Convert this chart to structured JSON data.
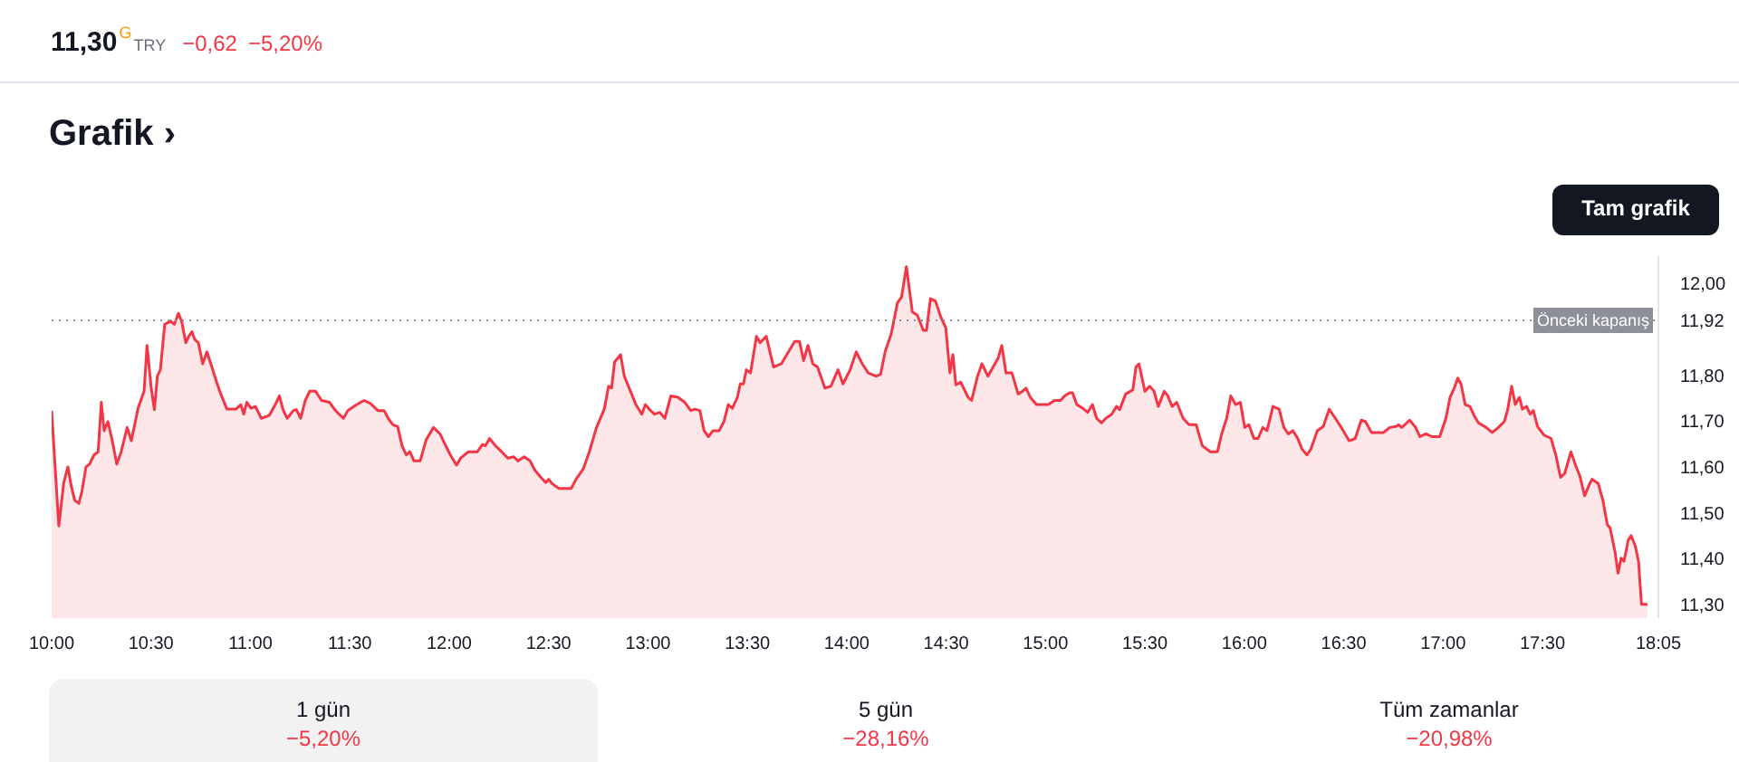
{
  "chart_data": {
    "type": "area",
    "title": "Grafik ›",
    "annotations": [
      "11,30",
      "G",
      "TRY",
      "−0,62",
      "−5,20%",
      "Tam grafik",
      "1 gün",
      "−5,20%",
      "5 gün",
      "−28,16%",
      "Tüm zamanlar",
      "−20,98%"
    ],
    "color": "#f23645",
    "x": [
      10.0,
      10.036,
      10.061,
      10.082,
      10.098,
      10.116,
      10.137,
      10.152,
      10.173,
      10.191,
      10.213,
      10.234,
      10.25,
      10.264,
      10.283,
      10.304,
      10.328,
      10.35,
      10.38,
      10.401,
      10.435,
      10.465,
      10.48,
      10.501,
      10.517,
      10.532,
      10.547,
      10.569,
      10.599,
      10.617,
      10.638,
      10.654,
      10.675,
      10.69,
      10.706,
      10.72,
      10.738,
      10.76,
      10.781,
      10.806,
      10.83,
      10.851,
      10.882,
      10.927,
      10.952,
      10.966,
      10.982,
      11.003,
      11.025,
      11.055,
      11.094,
      11.125,
      11.146,
      11.164,
      11.185,
      11.216,
      11.231,
      11.253,
      11.276,
      11.298,
      11.328,
      11.358,
      11.398,
      11.428,
      11.468,
      11.49,
      11.535,
      11.572,
      11.602,
      11.641,
      11.672,
      11.693,
      11.717,
      11.741,
      11.763,
      11.784,
      11.802,
      11.823,
      11.854,
      11.884,
      11.921,
      11.954,
      11.975,
      12.006,
      12.037,
      12.057,
      12.097,
      12.142,
      12.167,
      12.182,
      12.203,
      12.233,
      12.264,
      12.295,
      12.325,
      12.346,
      12.377,
      12.407,
      12.431,
      12.461,
      12.486,
      12.501,
      12.516,
      12.552,
      12.614,
      12.638,
      12.675,
      12.705,
      12.741,
      12.78,
      12.802,
      12.817,
      12.832,
      12.862,
      12.881,
      12.912,
      12.939,
      12.969,
      12.987,
      13.008,
      13.033,
      13.06,
      13.085,
      13.115,
      13.151,
      13.185,
      13.215,
      13.236,
      13.261,
      13.282,
      13.304,
      13.327,
      13.358,
      13.382,
      13.404,
      13.425,
      13.45,
      13.464,
      13.48,
      13.495,
      13.516,
      13.546,
      13.564,
      13.595,
      13.632,
      13.671,
      13.707,
      13.738,
      13.762,
      13.783,
      13.805,
      13.829,
      13.853,
      13.89,
      13.92,
      13.956,
      13.981,
      14.017,
      14.048,
      14.078,
      14.108,
      14.148,
      14.17,
      14.193,
      14.224,
      14.255,
      14.276,
      14.3,
      14.33,
      14.355,
      14.385,
      14.401,
      14.421,
      14.446,
      14.476,
      14.498,
      14.519,
      14.534,
      14.549,
      14.573,
      14.61,
      14.628,
      14.658,
      14.68,
      14.71,
      14.74,
      14.762,
      14.78,
      14.801,
      14.831,
      14.862,
      14.884,
      14.902,
      14.923,
      14.954,
      15.014,
      15.045,
      15.075,
      15.096,
      15.121,
      15.136,
      15.157,
      15.187,
      15.212,
      15.236,
      15.257,
      15.282,
      15.303,
      15.333,
      15.357,
      15.373,
      15.403,
      15.439,
      15.455,
      15.47,
      15.5,
      15.524,
      15.546,
      15.567,
      15.597,
      15.615,
      15.637,
      15.66,
      15.692,
      15.722,
      15.758,
      15.789,
      15.829,
      15.865,
      15.886,
      15.911,
      15.932,
      15.956,
      15.98,
      16.002,
      16.023,
      16.048,
      16.069,
      16.093,
      16.114,
      16.144,
      16.175,
      16.199,
      16.221,
      16.244,
      16.269,
      16.29,
      16.315,
      16.335,
      16.367,
      16.397,
      16.427,
      16.458,
      16.488,
      16.527,
      16.558,
      16.588,
      16.609,
      16.64,
      16.7,
      16.731,
      16.761,
      16.777,
      16.792,
      16.832,
      16.862,
      16.883,
      16.914,
      16.944,
      16.983,
      17.014,
      17.035,
      17.056,
      17.074,
      17.09,
      17.111,
      17.135,
      17.156,
      17.178,
      17.217,
      17.247,
      17.278,
      17.308,
      17.324,
      17.345,
      17.363,
      17.384,
      17.399,
      17.42,
      17.438,
      17.454,
      17.475,
      17.506,
      17.543,
      17.567,
      17.591,
      17.612,
      17.643,
      17.664,
      17.688,
      17.712,
      17.734,
      17.749,
      17.78,
      17.804,
      17.826,
      17.84,
      17.865,
      17.88,
      17.895,
      17.91,
      17.931,
      17.946,
      17.967,
      17.983,
      17.998,
      18.028
    ],
    "values": [
      11.723,
      11.471,
      11.566,
      11.6,
      11.56,
      11.527,
      11.52,
      11.546,
      11.6,
      11.606,
      11.626,
      11.633,
      11.741,
      11.679,
      11.699,
      11.659,
      11.606,
      11.633,
      11.686,
      11.657,
      11.728,
      11.765,
      11.865,
      11.772,
      11.725,
      11.798,
      11.812,
      11.911,
      11.918,
      11.911,
      11.935,
      11.918,
      11.871,
      11.885,
      11.895,
      11.878,
      11.871,
      11.825,
      11.851,
      11.818,
      11.785,
      11.759,
      11.726,
      11.726,
      11.736,
      11.715,
      11.741,
      11.728,
      11.732,
      11.706,
      11.712,
      11.736,
      11.755,
      11.725,
      11.706,
      11.723,
      11.725,
      11.706,
      11.745,
      11.765,
      11.765,
      11.745,
      11.741,
      11.723,
      11.706,
      11.723,
      11.736,
      11.745,
      11.739,
      11.723,
      11.723,
      11.706,
      11.692,
      11.688,
      11.646,
      11.626,
      11.633,
      11.613,
      11.613,
      11.659,
      11.686,
      11.672,
      11.653,
      11.626,
      11.604,
      11.619,
      11.633,
      11.633,
      11.649,
      11.646,
      11.662,
      11.646,
      11.633,
      11.619,
      11.622,
      11.613,
      11.622,
      11.613,
      11.593,
      11.577,
      11.566,
      11.573,
      11.564,
      11.553,
      11.553,
      11.573,
      11.596,
      11.633,
      11.686,
      11.726,
      11.776,
      11.772,
      11.829,
      11.845,
      11.798,
      11.765,
      11.736,
      11.715,
      11.736,
      11.725,
      11.715,
      11.719,
      11.706,
      11.755,
      11.752,
      11.741,
      11.723,
      11.726,
      11.723,
      11.679,
      11.666,
      11.679,
      11.679,
      11.699,
      11.736,
      11.728,
      11.752,
      11.781,
      11.781,
      11.812,
      11.805,
      11.885,
      11.871,
      11.885,
      11.818,
      11.825,
      11.851,
      11.874,
      11.874,
      11.832,
      11.865,
      11.825,
      11.818,
      11.772,
      11.776,
      11.812,
      11.781,
      11.812,
      11.851,
      11.825,
      11.805,
      11.798,
      11.802,
      11.851,
      11.891,
      11.958,
      11.971,
      12.037,
      11.938,
      11.931,
      11.898,
      11.898,
      11.967,
      11.962,
      11.924,
      11.904,
      11.805,
      11.845,
      11.779,
      11.785,
      11.752,
      11.745,
      11.798,
      11.825,
      11.798,
      11.821,
      11.838,
      11.865,
      11.805,
      11.805,
      11.759,
      11.765,
      11.772,
      11.752,
      11.736,
      11.736,
      11.745,
      11.745,
      11.755,
      11.762,
      11.762,
      11.736,
      11.728,
      11.719,
      11.736,
      11.706,
      11.696,
      11.706,
      11.715,
      11.732,
      11.725,
      11.759,
      11.768,
      11.818,
      11.825,
      11.765,
      11.776,
      11.765,
      11.732,
      11.765,
      11.755,
      11.732,
      11.741,
      11.706,
      11.692,
      11.692,
      11.646,
      11.633,
      11.633,
      11.672,
      11.706,
      11.755,
      11.736,
      11.741,
      11.686,
      11.692,
      11.662,
      11.662,
      11.686,
      11.679,
      11.732,
      11.726,
      11.686,
      11.672,
      11.679,
      11.662,
      11.639,
      11.626,
      11.639,
      11.679,
      11.688,
      11.726,
      11.706,
      11.686,
      11.657,
      11.662,
      11.702,
      11.699,
      11.675,
      11.675,
      11.686,
      11.688,
      11.692,
      11.686,
      11.702,
      11.686,
      11.666,
      11.672,
      11.666,
      11.666,
      11.706,
      11.752,
      11.772,
      11.794,
      11.781,
      11.736,
      11.732,
      11.712,
      11.696,
      11.686,
      11.675,
      11.686,
      11.699,
      11.723,
      11.776,
      11.736,
      11.752,
      11.726,
      11.732,
      11.715,
      11.723,
      11.688,
      11.67,
      11.662,
      11.626,
      11.577,
      11.586,
      11.633,
      11.606,
      11.58,
      11.537,
      11.56,
      11.573,
      11.564,
      11.527,
      11.474,
      11.467,
      11.414,
      11.368,
      11.401,
      11.394,
      11.44,
      11.45,
      11.427,
      11.394,
      11.3,
      11.3
    ],
    "xlim": [
      10,
      18.083
    ],
    "xticks": [
      {
        "value": 10,
        "label": "10:00"
      },
      {
        "value": 10.5,
        "label": "10:30"
      },
      {
        "value": 11,
        "label": "11:00"
      },
      {
        "value": 11.5,
        "label": "11:30"
      },
      {
        "value": 12,
        "label": "12:00"
      },
      {
        "value": 12.5,
        "label": "12:30"
      },
      {
        "value": 13,
        "label": "13:00"
      },
      {
        "value": 13.5,
        "label": "13:30"
      },
      {
        "value": 14,
        "label": "14:00"
      },
      {
        "value": 14.5,
        "label": "14:30"
      },
      {
        "value": 15,
        "label": "15:00"
      },
      {
        "value": 15.5,
        "label": "15:30"
      },
      {
        "value": 16,
        "label": "16:00"
      },
      {
        "value": 16.5,
        "label": "16:30"
      },
      {
        "value": 17,
        "label": "17:00"
      },
      {
        "value": 17.5,
        "label": "17:30"
      },
      {
        "value": 18.083,
        "label": "18:05"
      }
    ],
    "ylim": [
      11.27,
      12.06
    ],
    "yticks": [
      {
        "value": 11.3,
        "label": "11,30"
      },
      {
        "value": 11.4,
        "label": "11,40"
      },
      {
        "value": 11.5,
        "label": "11,50"
      },
      {
        "value": 11.6,
        "label": "11,60"
      },
      {
        "value": 11.7,
        "label": "11,70"
      },
      {
        "value": 11.8,
        "label": "11,80"
      },
      {
        "value": 11.92,
        "label": "11,92"
      },
      {
        "value": 12.0,
        "label": "12,00"
      }
    ],
    "ref_lines": [
      {
        "axis": "y",
        "value": 11.92,
        "label": "Önceki kapanış",
        "color": "#8e9099",
        "line_style": "dotted"
      }
    ],
    "grid": false
  }
}
